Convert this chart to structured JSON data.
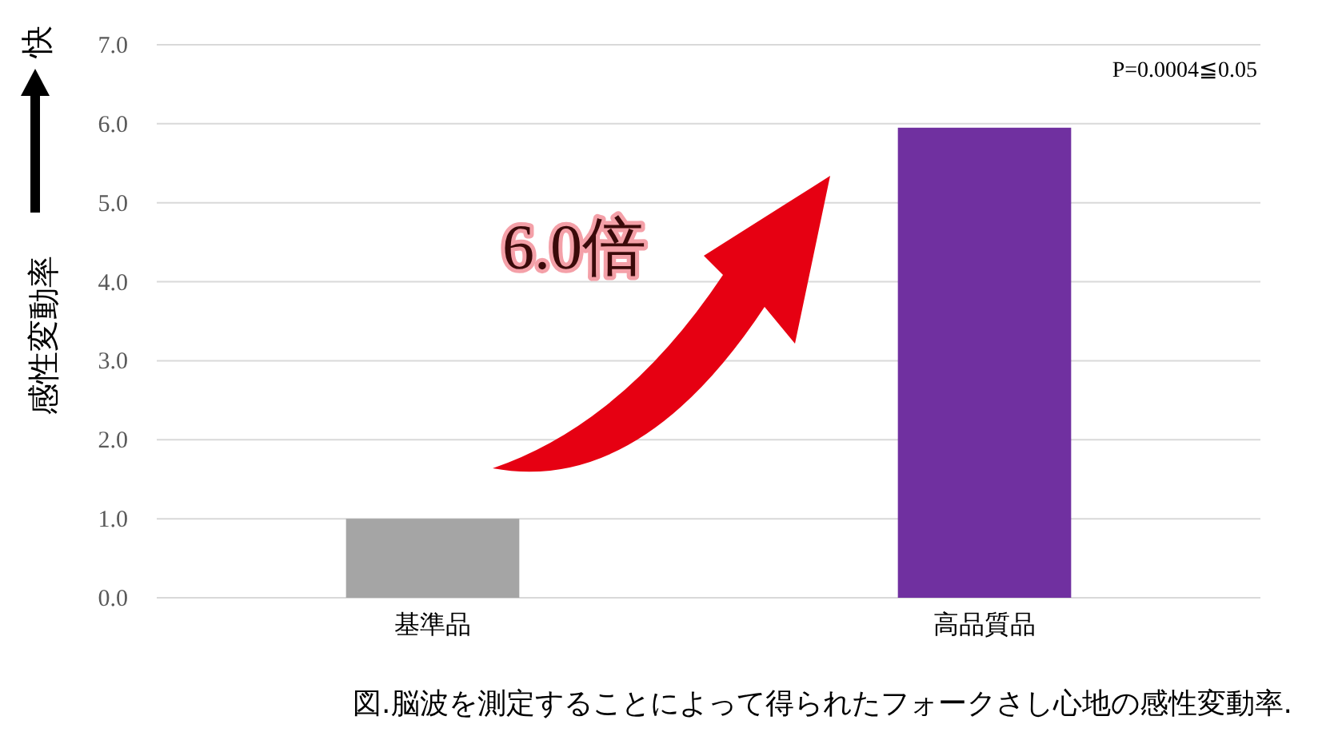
{
  "chart_data": {
    "type": "bar",
    "categories": [
      "基準品",
      "高品質品"
    ],
    "values": [
      1.0,
      5.95
    ],
    "colors": [
      "#a5a5a5",
      "#7030a0"
    ],
    "ylabel": "感性変動率",
    "ylim": [
      0,
      7
    ],
    "yticks": [
      {
        "value": 0,
        "label": "0.0"
      },
      {
        "value": 1,
        "label": "1.0"
      },
      {
        "value": 2,
        "label": "2.0"
      },
      {
        "value": 3,
        "label": "3.0"
      },
      {
        "value": 4,
        "label": "4.0"
      },
      {
        "value": 5,
        "label": "5.0"
      },
      {
        "value": 6,
        "label": "6.0"
      },
      {
        "value": 7,
        "label": "7.0"
      }
    ],
    "grid": "y",
    "annotations": [
      "快",
      "6.0倍",
      "P=0.0004≦0.05",
      "図.脳波を測定することによって得られたフォークさし心地の感性変動率."
    ]
  }
}
